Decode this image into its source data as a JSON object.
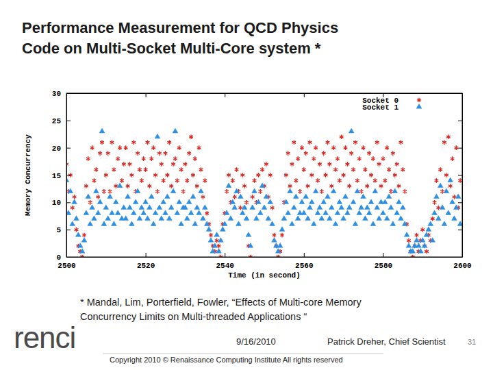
{
  "chart_data": {
    "type": "scatter",
    "title": "Performance Measurement for QCD Physics\nCode on Multi-Socket Multi-Core system *",
    "x_label": "Time (in second)",
    "y_label": "Memory Concurrency",
    "xlim": [
      2500,
      2600
    ],
    "ylim": [
      0,
      30
    ],
    "xticks": [
      2500,
      2520,
      2540,
      2560,
      2580,
      2600
    ],
    "yticks": [
      0,
      5,
      10,
      15,
      20,
      25,
      30
    ],
    "grid": false,
    "legend": "upper right",
    "x": [
      2500,
      2500.5,
      2501,
      2501.5,
      2502,
      2502.5,
      2503,
      2503.5,
      2504,
      2504.5,
      2505,
      2505.5,
      2506,
      2506.5,
      2507,
      2507.5,
      2508,
      2508.5,
      2509,
      2509.5,
      2510,
      2510.5,
      2511,
      2511.5,
      2512,
      2512.5,
      2513,
      2513.5,
      2514,
      2514.5,
      2515,
      2515.5,
      2516,
      2516.5,
      2517,
      2517.5,
      2518,
      2518.5,
      2519,
      2519.5,
      2520,
      2520.5,
      2521,
      2521.5,
      2522,
      2522.5,
      2523,
      2523.5,
      2524,
      2524.5,
      2525,
      2525.5,
      2526,
      2526.5,
      2527,
      2527.5,
      2528,
      2528.5,
      2529,
      2529.5,
      2530,
      2530.5,
      2531,
      2531.5,
      2532,
      2532.5,
      2533,
      2533.5,
      2534,
      2534.5,
      2535,
      2535.5,
      2536,
      2536.5,
      2537,
      2537.5,
      2538,
      2538.5,
      2539,
      2539.5,
      2540,
      2540.5,
      2541,
      2541.5,
      2542,
      2542.5,
      2543,
      2543.5,
      2544,
      2544.5,
      2545,
      2545.5,
      2546,
      2546.5,
      2547,
      2547.5,
      2548,
      2548.5,
      2549,
      2549.5,
      2550,
      2550.5,
      2551,
      2551.5,
      2552,
      2552.5,
      2553,
      2553.5,
      2554,
      2554.5,
      2555,
      2555.5,
      2556,
      2556.5,
      2557,
      2557.5,
      2558,
      2558.5,
      2559,
      2559.5,
      2560,
      2560.5,
      2561,
      2561.5,
      2562,
      2562.5,
      2563,
      2563.5,
      2564,
      2564.5,
      2565,
      2565.5,
      2566,
      2566.5,
      2567,
      2567.5,
      2568,
      2568.5,
      2569,
      2569.5,
      2570,
      2570.5,
      2571,
      2571.5,
      2572,
      2572.5,
      2573,
      2573.5,
      2574,
      2574.5,
      2575,
      2575.5,
      2576,
      2576.5,
      2577,
      2577.5,
      2578,
      2578.5,
      2579,
      2579.5,
      2580,
      2580.5,
      2581,
      2581.5,
      2582,
      2582.5,
      2583,
      2583.5,
      2584,
      2584.5,
      2585,
      2585.5,
      2586,
      2586.5,
      2587,
      2587.5,
      2588,
      2588.5,
      2589,
      2589.5,
      2590,
      2590.5,
      2591,
      2591.5,
      2592,
      2592.5,
      2593,
      2593.5,
      2594,
      2594.5,
      2595,
      2595.5,
      2596,
      2596.5,
      2597,
      2597.5,
      2598,
      2598.5,
      2599,
      2599.5
    ],
    "series": [
      {
        "name": "Socket 0",
        "color": "#e0201b",
        "marker": "asterisk",
        "values": [
          17,
          12,
          15,
          9,
          11,
          5,
          2,
          1,
          0,
          4,
          13,
          18,
          10,
          20,
          14,
          16,
          11,
          19,
          21,
          12,
          15,
          19,
          12,
          21,
          16,
          13,
          18,
          20,
          14,
          17,
          20,
          13,
          17,
          15,
          21,
          12,
          19,
          16,
          14,
          18,
          16,
          21,
          13,
          18,
          20,
          15,
          12,
          19,
          17,
          14,
          19,
          15,
          21,
          13,
          17,
          18,
          14,
          20,
          16,
          12,
          17,
          14,
          19,
          22,
          15,
          18,
          13,
          20,
          16,
          11,
          14,
          8,
          6,
          4,
          2,
          1,
          3,
          2,
          0,
          6,
          8,
          12,
          15,
          10,
          14,
          11,
          16,
          12,
          9,
          15,
          13,
          10,
          2,
          0,
          11,
          14,
          10,
          15,
          12,
          16,
          13,
          17,
          11,
          15,
          9,
          4,
          2,
          0,
          1,
          4,
          10,
          15,
          19,
          13,
          17,
          21,
          14,
          18,
          12,
          20,
          16,
          19,
          13,
          21,
          15,
          18,
          20,
          14,
          17,
          12,
          19,
          15,
          21,
          17,
          13,
          20,
          16,
          18,
          14,
          22,
          15,
          20,
          17,
          13,
          19,
          16,
          21,
          14,
          18,
          12,
          20,
          16,
          13,
          19,
          15,
          18,
          14,
          21,
          17,
          13,
          18,
          14,
          20,
          16,
          12,
          19,
          15,
          17,
          13,
          21,
          16,
          12,
          6,
          3,
          1,
          0,
          2,
          4,
          1,
          3,
          5,
          2,
          1,
          4,
          3,
          7,
          10,
          14,
          9,
          16,
          12,
          21,
          15,
          22,
          13,
          18,
          11,
          20,
          9,
          14
        ]
      },
      {
        "name": "Socket 1",
        "color": "#2e8fe0",
        "marker": "triangle",
        "values": [
          14,
          8,
          12,
          6,
          10,
          7,
          4,
          2,
          1,
          3,
          8,
          11,
          6,
          9,
          7,
          12,
          8,
          10,
          23,
          6,
          9,
          7,
          11,
          8,
          6,
          10,
          8,
          13,
          7,
          9,
          7,
          11,
          9,
          6,
          8,
          10,
          12,
          7,
          9,
          8,
          10,
          7,
          9,
          11,
          6,
          8,
          22,
          9,
          7,
          10,
          8,
          11,
          7,
          9,
          12,
          23,
          8,
          10,
          6,
          9,
          9,
          7,
          10,
          8,
          11,
          6,
          9,
          8,
          12,
          7,
          9,
          6,
          5,
          3,
          1,
          2,
          4,
          1,
          3,
          5,
          6,
          8,
          13,
          7,
          10,
          9,
          12,
          6,
          11,
          8,
          9,
          7,
          4,
          2,
          9,
          12,
          7,
          10,
          8,
          13,
          9,
          11,
          7,
          10,
          6,
          3,
          2,
          1,
          2,
          5,
          7,
          10,
          8,
          12,
          6,
          9,
          11,
          7,
          8,
          10,
          8,
          11,
          7,
          9,
          10,
          6,
          12,
          8,
          9,
          7,
          10,
          8,
          11,
          7,
          9,
          12,
          6,
          8,
          10,
          9,
          7,
          11,
          8,
          9,
          23,
          10,
          6,
          12,
          8,
          9,
          11,
          7,
          9,
          8,
          10,
          6,
          12,
          9,
          7,
          10,
          8,
          10,
          7,
          11,
          9,
          6,
          12,
          8,
          10,
          7,
          9,
          6,
          4,
          2,
          1,
          1,
          2,
          3,
          2,
          1,
          3,
          2,
          4,
          5,
          6,
          3,
          8,
          11,
          7,
          13,
          9,
          6,
          12,
          8,
          14,
          10,
          7,
          9,
          11,
          6
        ]
      }
    ]
  },
  "slide": {
    "footnote": "* Mandal, Lim, Porterfield, Fowler, “Effects of Multi-core Memory\nConcurrency Limits on Multi-threaded Applications “",
    "logo": "renci",
    "date": "9/16/2010",
    "author": "Patrick Dreher, Chief Scientist",
    "page": "31",
    "copyright": "Copyright 2010 © Renaissance Computing Institute All rights reserved"
  }
}
